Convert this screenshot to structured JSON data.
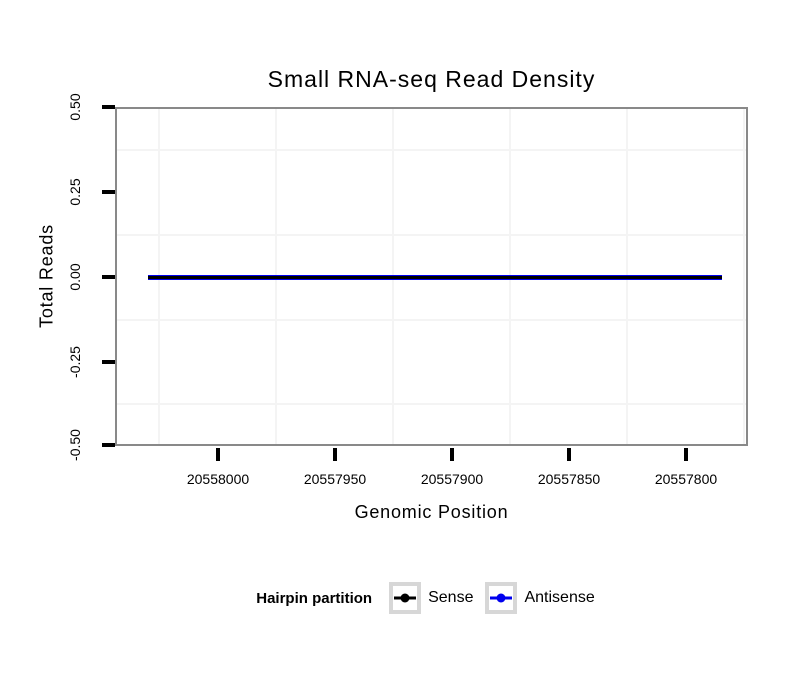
{
  "title": "Small RNA-seq Read Density",
  "y_axis": {
    "label": "Total Reads",
    "ticks": [
      "0.50",
      "0.25",
      "0.00",
      "-0.25",
      "-0.50"
    ]
  },
  "x_axis": {
    "label": "Genomic Position",
    "ticks": [
      "20558000",
      "20557950",
      "20557900",
      "20557850",
      "20557800"
    ]
  },
  "legend": {
    "title": "Hairpin partition",
    "items": [
      {
        "label": "Sense",
        "color": "#000000"
      },
      {
        "label": "Antisense",
        "color": "#0000EE"
      }
    ]
  },
  "colors": {
    "background": "#FFFFFF",
    "panel_border": "#898989",
    "minor_grid": "#F4F4F4",
    "tick_mark": "#000000",
    "legend_key_border": "#D7D7D7",
    "sense_line": "#000000",
    "antisense_line": "#0000EE"
  },
  "chart_data": {
    "type": "line",
    "title": "Small RNA-seq Read Density",
    "xlabel": "Genomic Position",
    "ylabel": "Total Reads",
    "x_axis_reversed": true,
    "x_tick_values": [
      20558000,
      20557950,
      20557900,
      20557850,
      20557800
    ],
    "x_range": [
      20558030,
      20557786
    ],
    "ylim": [
      -0.5,
      0.5
    ],
    "y_tick_values": [
      0.5,
      0.25,
      0.0,
      -0.25,
      -0.5
    ],
    "grid": "minor-gridlines-only",
    "legend_position": "bottom",
    "legend_title": "Hairpin partition",
    "series": [
      {
        "name": "Sense",
        "color": "#000000",
        "x": [
          20558030,
          20557786
        ],
        "y": [
          0,
          0
        ]
      },
      {
        "name": "Antisense",
        "color": "#0000EE",
        "x": [
          20558030,
          20557786
        ],
        "y": [
          0,
          0
        ]
      }
    ]
  }
}
